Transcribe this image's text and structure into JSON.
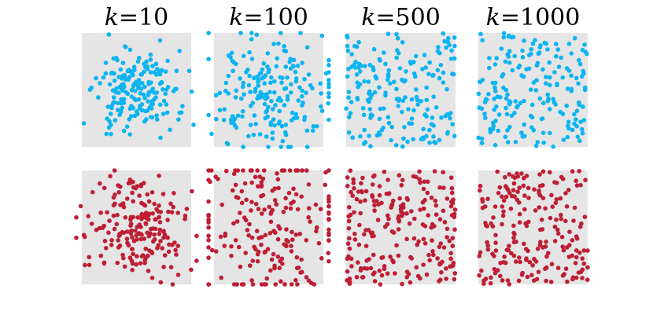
{
  "colors": {
    "panel_bg": "#e5e5e5",
    "top_row_points": "#0db4f0",
    "bottom_row_points": "#be1e34"
  },
  "chart_data": {
    "type": "scatter",
    "grid": false,
    "columns": [
      {
        "variable": "k",
        "equals": "=",
        "value": "10"
      },
      {
        "variable": "k",
        "equals": "=",
        "value": "100"
      },
      {
        "variable": "k",
        "equals": "=",
        "value": "500"
      },
      {
        "variable": "k",
        "equals": "=",
        "value": "1000"
      }
    ],
    "rows": [
      {
        "color": "#0db4f0",
        "panels": [
          {
            "spread": 0.18,
            "n": 190,
            "seed": 11
          },
          {
            "spread": 0.28,
            "n": 200,
            "seed": 23
          },
          {
            "spread": 0.62,
            "n": 190,
            "seed": 37
          },
          {
            "spread": 0.62,
            "n": 190,
            "seed": 41
          }
        ]
      },
      {
        "color": "#be1e34",
        "panels": [
          {
            "spread": 0.22,
            "n": 200,
            "seed": 53
          },
          {
            "spread": 0.38,
            "n": 210,
            "seed": 67
          },
          {
            "spread": 0.62,
            "n": 220,
            "seed": 79
          },
          {
            "spread": 0.62,
            "n": 210,
            "seed": 97
          }
        ]
      }
    ]
  }
}
